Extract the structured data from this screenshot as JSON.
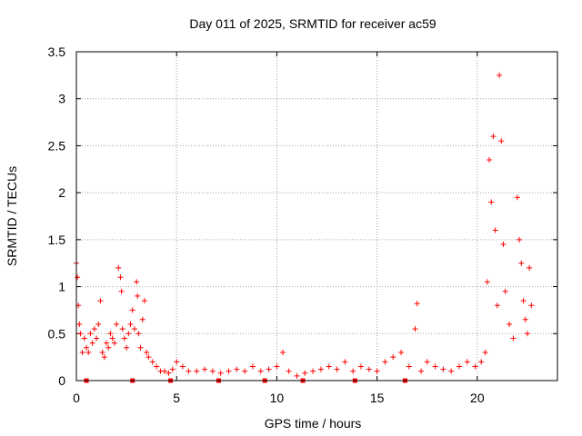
{
  "chart_data": {
    "type": "scatter",
    "title": "Day 011 of 2025, SRMTID for receiver ac59",
    "xlabel": "GPS time / hours",
    "ylabel": "SRMTID / TECUs",
    "xlim": [
      0,
      24
    ],
    "ylim": [
      0,
      3.5
    ],
    "x_ticks": [
      0,
      5,
      10,
      15,
      20
    ],
    "x_tick_labels": [
      "0",
      "5",
      "10",
      "15",
      "20"
    ],
    "y_ticks": [
      0,
      0.5,
      1,
      1.5,
      2,
      2.5,
      3,
      3.5
    ],
    "y_tick_labels": [
      "0",
      "0.5",
      "1",
      "1.5",
      "2",
      "2.5",
      "3",
      "3.5"
    ],
    "grid": true,
    "marker": "+",
    "color": "#ff0000",
    "series": [
      {
        "name": "SRMTID",
        "x": [
          0.0,
          0.05,
          0.1,
          0.15,
          0.2,
          0.3,
          0.4,
          0.5,
          0.6,
          0.7,
          0.8,
          0.9,
          1.0,
          1.1,
          1.2,
          1.3,
          1.4,
          1.5,
          1.6,
          1.7,
          1.8,
          1.9,
          2.0,
          2.1,
          2.2,
          2.25,
          2.3,
          2.4,
          2.5,
          2.6,
          2.7,
          2.8,
          2.9,
          3.0,
          3.05,
          3.1,
          3.2,
          3.3,
          3.4,
          3.5,
          3.6,
          3.8,
          4.0,
          4.2,
          4.4,
          4.6,
          4.8,
          5.0,
          5.3,
          5.6,
          6.0,
          6.4,
          6.8,
          7.2,
          7.6,
          8.0,
          8.4,
          8.8,
          9.2,
          9.6,
          10.0,
          10.3,
          10.6,
          11.0,
          11.4,
          11.8,
          12.2,
          12.6,
          13.0,
          13.4,
          13.8,
          14.2,
          14.6,
          15.0,
          15.4,
          15.8,
          16.2,
          16.6,
          16.9,
          17.0,
          17.2,
          17.5,
          17.9,
          18.3,
          18.7,
          19.1,
          19.5,
          19.9,
          20.2,
          20.4,
          20.5,
          20.6,
          20.7,
          20.8,
          20.9,
          21.0,
          21.1,
          21.2,
          21.3,
          21.4,
          21.6,
          21.8,
          22.0,
          22.1,
          22.2,
          22.3,
          22.4,
          22.5,
          22.6,
          22.7
        ],
        "y": [
          1.25,
          1.1,
          0.8,
          0.6,
          0.5,
          0.3,
          0.45,
          0.35,
          0.3,
          0.5,
          0.4,
          0.55,
          0.45,
          0.6,
          0.85,
          0.3,
          0.25,
          0.4,
          0.35,
          0.5,
          0.45,
          0.4,
          0.6,
          1.2,
          1.1,
          0.95,
          0.55,
          0.45,
          0.35,
          0.5,
          0.6,
          0.75,
          0.55,
          1.05,
          0.9,
          0.5,
          0.35,
          0.65,
          0.85,
          0.3,
          0.25,
          0.2,
          0.15,
          0.1,
          0.1,
          0.08,
          0.12,
          0.2,
          0.15,
          0.1,
          0.1,
          0.12,
          0.1,
          0.08,
          0.1,
          0.12,
          0.1,
          0.15,
          0.1,
          0.12,
          0.15,
          0.3,
          0.1,
          0.05,
          0.08,
          0.1,
          0.12,
          0.15,
          0.12,
          0.2,
          0.1,
          0.15,
          0.12,
          0.1,
          0.2,
          0.25,
          0.3,
          0.15,
          0.55,
          0.82,
          0.1,
          0.2,
          0.15,
          0.12,
          0.1,
          0.15,
          0.2,
          0.15,
          0.2,
          0.3,
          1.05,
          2.35,
          1.9,
          2.6,
          1.6,
          0.8,
          3.25,
          2.55,
          1.45,
          0.95,
          0.6,
          0.45,
          1.95,
          1.5,
          1.25,
          0.85,
          0.65,
          0.5,
          1.2,
          0.8
        ]
      }
    ],
    "baseline_markers_x": [
      0.5,
      2.8,
      4.7,
      7.1,
      9.4,
      11.3,
      13.9,
      16.4
    ]
  }
}
